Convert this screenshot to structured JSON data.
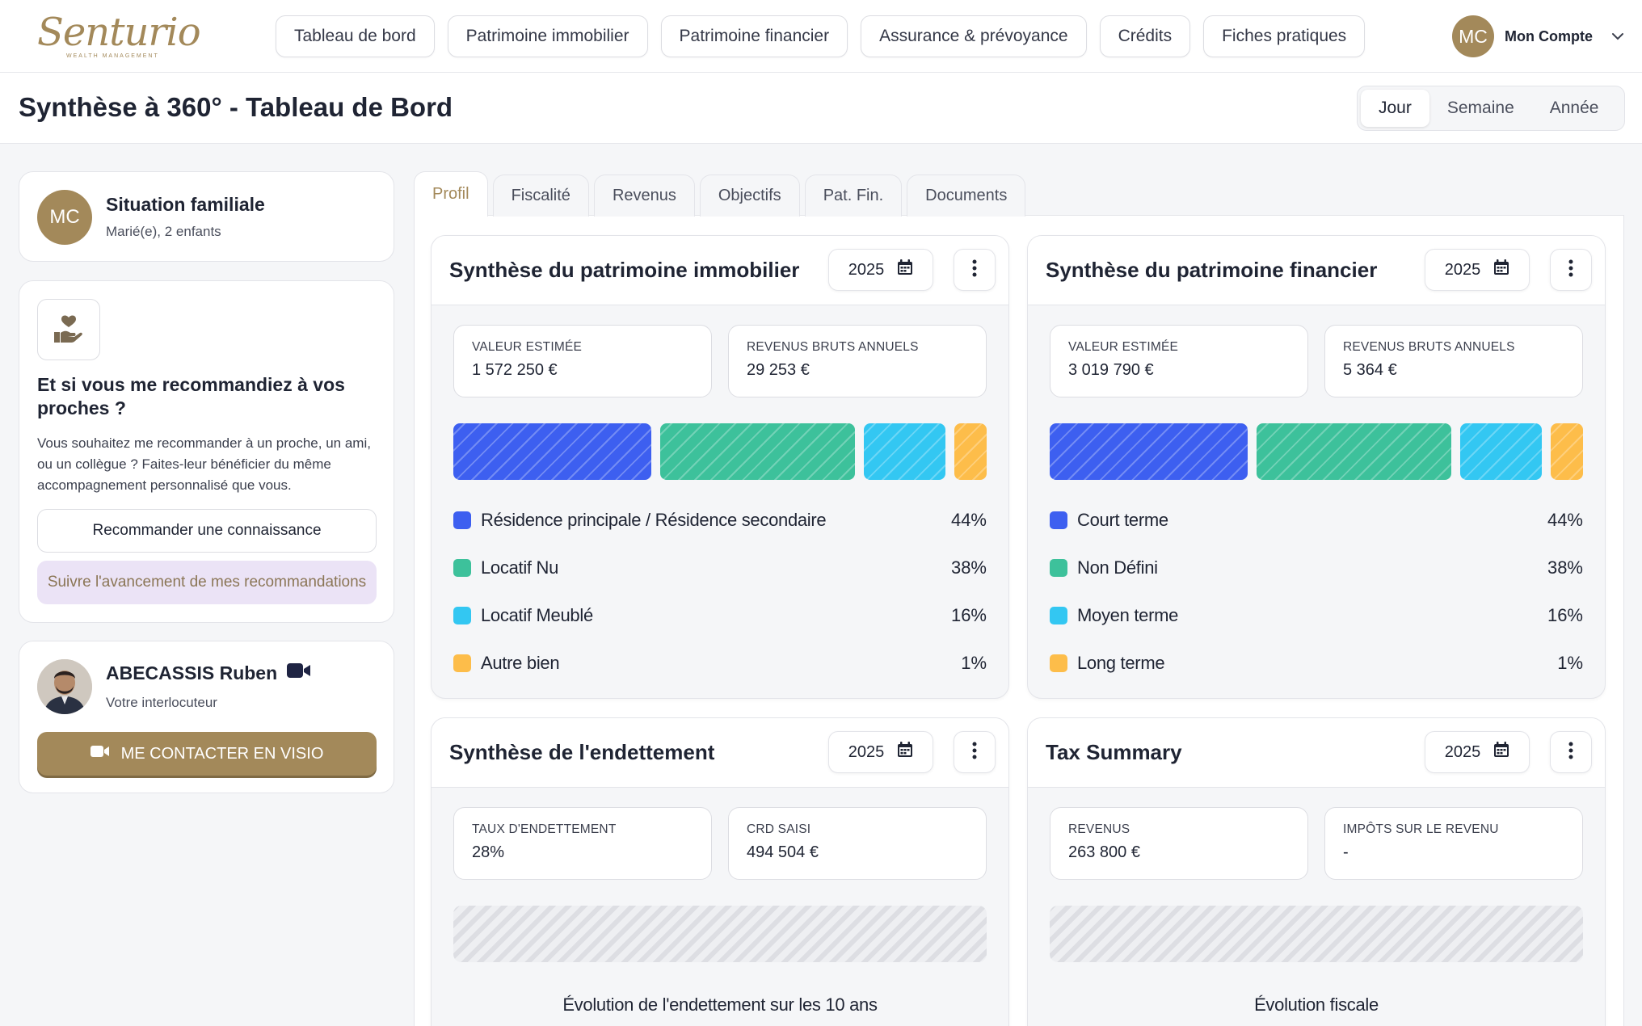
{
  "brand": {
    "logo_text": "Senturio",
    "logo_subtitle": "WEALTH MANAGEMENT",
    "accent": "#a3895a"
  },
  "nav": {
    "items": [
      "Tableau de bord",
      "Patrimoine immobilier",
      "Patrimoine financier",
      "Assurance & prévoyance",
      "Crédits",
      "Fiches pratiques"
    ]
  },
  "account": {
    "initials": "MC",
    "label": "Mon Compte"
  },
  "page": {
    "title": "Synthèse à 360° - Tableau de Bord"
  },
  "period": {
    "options": [
      "Jour",
      "Semaine",
      "Année"
    ],
    "selected": "Jour"
  },
  "family": {
    "initials": "MC",
    "title": "Situation familiale",
    "subtitle": "Marié(e), 2 enfants"
  },
  "recommend": {
    "title": "Et si vous me recommandiez à vos proches ?",
    "text": "Vous souhaitez me recommander à un proche, un ami, ou un collègue ? Faites-leur bénéficier du même accompagnement personnalisé que vous.",
    "primary_button": "Recommander une connaissance",
    "secondary_button": "Suivre l'avancement de mes recommandations"
  },
  "advisor": {
    "name": "ABECASSIS Ruben",
    "role": "Votre interlocuteur",
    "button": "ME CONTACTER EN VISIO"
  },
  "tabs": [
    "Profil",
    "Fiscalité",
    "Revenus",
    "Objectifs",
    "Pat. Fin.",
    "Documents"
  ],
  "active_tab": "Profil",
  "colors": {
    "blue": "#3d5ff0",
    "green": "#3dc19b",
    "cyan": "#33c7f2",
    "orange": "#fdbd4a"
  },
  "cards": {
    "immobilier": {
      "title": "Synthèse du patrimoine immobilier",
      "year": "2025",
      "stats": [
        {
          "label": "VALEUR ESTIMÉE",
          "value": "1 572 250 €"
        },
        {
          "label": "REVENUS BRUTS ANNUELS",
          "value": "29 253 €"
        }
      ],
      "breakdown": [
        {
          "label": "Résidence principale / Résidence secondaire",
          "pct": "44%",
          "value": 44,
          "color": "#3d5ff0"
        },
        {
          "label": "Locatif Nu",
          "pct": "38%",
          "value": 38,
          "color": "#3dc19b"
        },
        {
          "label": "Locatif Meublé",
          "pct": "16%",
          "value": 16,
          "color": "#33c7f2"
        },
        {
          "label": "Autre bien",
          "pct": "1%",
          "value": 1,
          "color": "#fdbd4a"
        }
      ]
    },
    "financier": {
      "title": "Synthèse du patrimoine financier",
      "year": "2025",
      "stats": [
        {
          "label": "VALEUR ESTIMÉE",
          "value": "3 019 790 €"
        },
        {
          "label": "REVENUS BRUTS ANNUELS",
          "value": "5 364 €"
        }
      ],
      "breakdown": [
        {
          "label": "Court terme",
          "pct": "44%",
          "value": 44,
          "color": "#3d5ff0"
        },
        {
          "label": "Non Défini",
          "pct": "38%",
          "value": 38,
          "color": "#3dc19b"
        },
        {
          "label": "Moyen terme",
          "pct": "16%",
          "value": 16,
          "color": "#33c7f2"
        },
        {
          "label": "Long terme",
          "pct": "1%",
          "value": 1,
          "color": "#fdbd4a"
        }
      ]
    },
    "endettement": {
      "title": "Synthèse de l'endettement",
      "year": "2025",
      "stats": [
        {
          "label": "TAUX D'ENDETTEMENT",
          "value": "28%"
        },
        {
          "label": "CRD SAISI",
          "value": "494 504 €"
        }
      ],
      "caption": "Évolution de l'endettement sur les 10 ans"
    },
    "tax": {
      "title": "Tax Summary",
      "year": "2025",
      "stats": [
        {
          "label": "REVENUS",
          "value": "263 800 €"
        },
        {
          "label": "IMPÔTS SUR LE REVENU",
          "value": "-"
        }
      ],
      "caption": "Évolution fiscale"
    }
  }
}
